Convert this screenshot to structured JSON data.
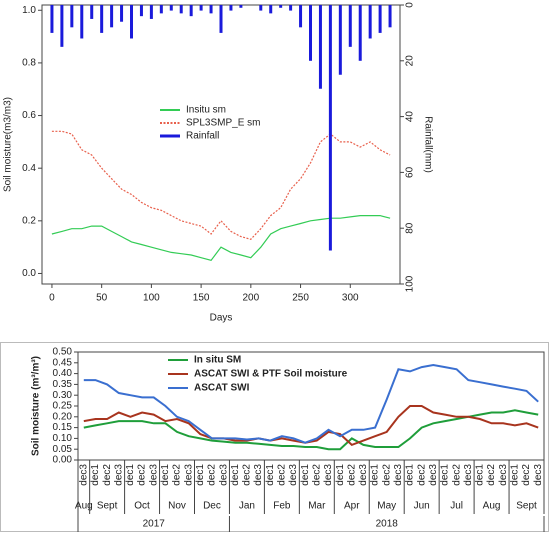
{
  "chart_data": [
    {
      "type": "line",
      "x_label": "Days",
      "y_label": "Soil moisture(m3/m3)",
      "y2_label": "Rainfall(mm)",
      "x": [
        0,
        10,
        20,
        30,
        40,
        50,
        60,
        70,
        80,
        90,
        100,
        110,
        120,
        130,
        140,
        150,
        160,
        170,
        180,
        190,
        200,
        210,
        220,
        230,
        240,
        250,
        260,
        270,
        280,
        290,
        300,
        310,
        320,
        330,
        340
      ],
      "series": [
        {
          "name": "Insitu sm",
          "color": "#33cc55",
          "style": "solid",
          "values": [
            0.15,
            0.16,
            0.17,
            0.17,
            0.18,
            0.18,
            0.16,
            0.14,
            0.12,
            0.11,
            0.1,
            0.09,
            0.08,
            0.075,
            0.07,
            0.06,
            0.05,
            0.1,
            0.08,
            0.07,
            0.06,
            0.1,
            0.15,
            0.17,
            0.18,
            0.19,
            0.2,
            0.205,
            0.21,
            0.21,
            0.215,
            0.22,
            0.22,
            0.22,
            0.21
          ]
        },
        {
          "name": "SPL3SMP_E sm",
          "color": "#e8604c",
          "style": "dotted",
          "values": [
            0.54,
            0.54,
            0.53,
            0.47,
            0.45,
            0.4,
            0.36,
            0.32,
            0.3,
            0.27,
            0.25,
            0.24,
            0.22,
            0.2,
            0.19,
            0.18,
            0.15,
            0.2,
            0.16,
            0.14,
            0.13,
            0.17,
            0.22,
            0.25,
            0.32,
            0.36,
            0.42,
            0.5,
            0.53,
            0.5,
            0.5,
            0.48,
            0.5,
            0.47,
            0.45
          ]
        },
        {
          "name": "Rainfall",
          "color": "#1a1adb",
          "style": "bars",
          "axis": "y2",
          "values": [
            10,
            15,
            8,
            12,
            5,
            10,
            8,
            6,
            12,
            4,
            5,
            3,
            2,
            3,
            4,
            2,
            3,
            10,
            2,
            1,
            0,
            2,
            3,
            1,
            2,
            8,
            20,
            30,
            88,
            25,
            15,
            20,
            12,
            10,
            8
          ]
        }
      ],
      "xlim": [
        -10,
        350
      ],
      "xticks": [
        0,
        50,
        100,
        150,
        200,
        250,
        300
      ],
      "ylim": [
        -0.04,
        1.02
      ],
      "yticks": [
        {
          "value": 0,
          "label": "0.0"
        },
        0.2,
        0.4,
        0.6,
        0.8,
        {
          "value": 1,
          "label": "1.0"
        }
      ],
      "y2lim": [
        100,
        0
      ],
      "y2ticks": [
        0,
        20,
        40,
        60,
        80,
        100
      ],
      "legend": "center"
    },
    {
      "type": "line",
      "y_label": "Soil moisture (m³/m³)",
      "categories": [
        "dec3",
        "dec1",
        "dec2",
        "dec3",
        "dec1",
        "dec2",
        "dec3",
        "dec1",
        "dec2",
        "dec3",
        "dec1",
        "dec2",
        "dec3",
        "dec1",
        "dec2",
        "dec3",
        "dec1",
        "dec2",
        "dec3",
        "dec1",
        "dec2",
        "dec3",
        "dec1",
        "dec2",
        "dec3",
        "dec1",
        "dec2",
        "dec3",
        "dec1",
        "dec2",
        "dec3",
        "dec1",
        "dec2",
        "dec3",
        "dec1",
        "dec2",
        "dec3",
        "dec1",
        "dec2",
        "dec3"
      ],
      "months": [
        {
          "label": "Aug",
          "span": 1
        },
        {
          "label": "Sept",
          "span": 3
        },
        {
          "label": "Oct",
          "span": 3
        },
        {
          "label": "Nov",
          "span": 3
        },
        {
          "label": "Dec",
          "span": 3
        },
        {
          "label": "Jan",
          "span": 3
        },
        {
          "label": "Feb",
          "span": 3
        },
        {
          "label": "Mar",
          "span": 3
        },
        {
          "label": "Apr",
          "span": 3
        },
        {
          "label": "May",
          "span": 3
        },
        {
          "label": "Jun",
          "span": 3
        },
        {
          "label": "Jul",
          "span": 3
        },
        {
          "label": "Aug",
          "span": 3
        },
        {
          "label": "Sept",
          "span": 3
        }
      ],
      "years": [
        {
          "label": "2017",
          "span": 13
        },
        {
          "label": "2018",
          "span": 27
        }
      ],
      "series": [
        {
          "name": "In situ SM",
          "color": "#1f9e3a",
          "style": "solid",
          "values": [
            0.15,
            0.16,
            0.17,
            0.18,
            0.18,
            0.18,
            0.17,
            0.17,
            0.13,
            0.11,
            0.1,
            0.09,
            0.085,
            0.08,
            0.08,
            0.075,
            0.07,
            0.065,
            0.065,
            0.06,
            0.06,
            0.05,
            0.05,
            0.1,
            0.07,
            0.06,
            0.06,
            0.06,
            0.1,
            0.15,
            0.17,
            0.18,
            0.19,
            0.2,
            0.21,
            0.22,
            0.22,
            0.23,
            0.22,
            0.21
          ]
        },
        {
          "name": "ASCAT SWI & PTF Soil moisture",
          "color": "#a8341e",
          "style": "solid",
          "values": [
            0.18,
            0.19,
            0.19,
            0.22,
            0.2,
            0.22,
            0.21,
            0.18,
            0.19,
            0.17,
            0.12,
            0.1,
            0.1,
            0.09,
            0.09,
            0.1,
            0.09,
            0.1,
            0.09,
            0.08,
            0.09,
            0.13,
            0.12,
            0.07,
            0.09,
            0.11,
            0.13,
            0.2,
            0.25,
            0.25,
            0.22,
            0.21,
            0.2,
            0.2,
            0.19,
            0.17,
            0.17,
            0.16,
            0.17,
            0.15
          ]
        },
        {
          "name": "ASCAT SWI",
          "color": "#3a6fd0",
          "style": "solid",
          "values": [
            0.37,
            0.37,
            0.35,
            0.31,
            0.3,
            0.29,
            0.29,
            0.25,
            0.2,
            0.18,
            0.14,
            0.1,
            0.1,
            0.1,
            0.095,
            0.1,
            0.09,
            0.11,
            0.1,
            0.08,
            0.1,
            0.14,
            0.11,
            0.14,
            0.14,
            0.15,
            0.28,
            0.42,
            0.41,
            0.43,
            0.44,
            0.43,
            0.42,
            0.37,
            0.36,
            0.35,
            0.34,
            0.33,
            0.32,
            0.27
          ]
        }
      ],
      "ylim": [
        0,
        0.5
      ],
      "yticks": [
        {
          "value": 0,
          "label": "0.00"
        },
        {
          "value": 0.05,
          "label": "0.05"
        },
        {
          "value": 0.1,
          "label": "0.10"
        },
        {
          "value": 0.15,
          "label": "0.15"
        },
        {
          "value": 0.2,
          "label": "0.20"
        },
        {
          "value": 0.25,
          "label": "0.25"
        },
        {
          "value": 0.3,
          "label": "0.30"
        },
        {
          "value": 0.35,
          "label": "0.35"
        },
        {
          "value": 0.4,
          "label": "0.40"
        },
        {
          "value": 0.45,
          "label": "0.45"
        },
        {
          "value": 0.5,
          "label": "0.50"
        }
      ],
      "legend": "upper left"
    }
  ]
}
